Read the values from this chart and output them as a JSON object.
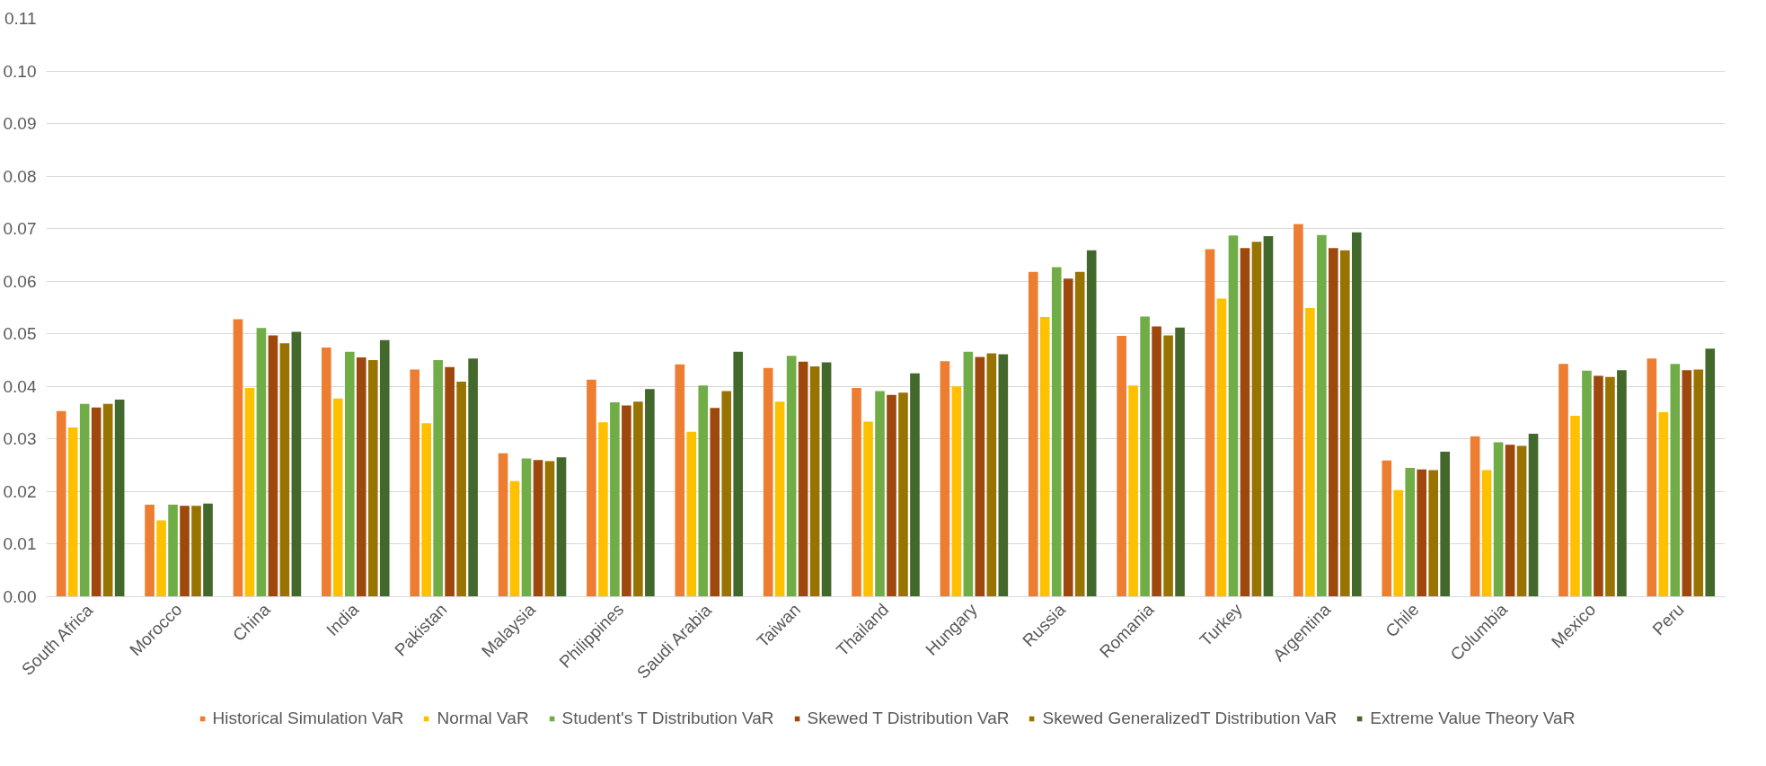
{
  "chart_data": {
    "type": "bar",
    "categories": [
      "South Africa",
      "Morocco",
      "China",
      "India",
      "Pakistan",
      "Malaysia",
      "Philippines",
      "Saudi Arabia",
      "Taiwan",
      "Thailand",
      "Hungary",
      "Russia",
      "Romania",
      "Turkey",
      "Argentina",
      "Chile",
      "Columbia",
      "Mexico",
      "Peru"
    ],
    "series": [
      {
        "name": "Historical Simulation VaR",
        "color": "#ed7d31",
        "values": [
          0.0353,
          0.0175,
          0.0528,
          0.0474,
          0.0432,
          0.0273,
          0.0413,
          0.0442,
          0.0435,
          0.0397,
          0.0448,
          0.0618,
          0.0496,
          0.0661,
          0.0709,
          0.0259,
          0.0305,
          0.0443,
          0.0453
        ]
      },
      {
        "name": "Normal VaR",
        "color": "#ffc000",
        "values": [
          0.0322,
          0.0145,
          0.0397,
          0.0377,
          0.033,
          0.022,
          0.0332,
          0.0314,
          0.0371,
          0.0333,
          0.04,
          0.0532,
          0.0402,
          0.0567,
          0.0549,
          0.0203,
          0.0241,
          0.0344,
          0.0351
        ]
      },
      {
        "name": "Student's T Distribution VaR",
        "color": "#70ad47",
        "values": [
          0.0367,
          0.0175,
          0.0511,
          0.0466,
          0.045,
          0.0263,
          0.037,
          0.0402,
          0.0458,
          0.0391,
          0.0466,
          0.0627,
          0.0533,
          0.0687,
          0.0688,
          0.0245,
          0.0294,
          0.043,
          0.0443
        ]
      },
      {
        "name": "Skewed T Distribution VaR",
        "color": "#9e480e",
        "values": [
          0.036,
          0.0173,
          0.0497,
          0.0455,
          0.0437,
          0.026,
          0.0364,
          0.0359,
          0.0447,
          0.0384,
          0.0456,
          0.0605,
          0.0514,
          0.0663,
          0.0663,
          0.0242,
          0.0289,
          0.042,
          0.0431
        ]
      },
      {
        "name": "Skewed GeneralizedT Distribution VaR",
        "color": "#997300",
        "values": [
          0.0367,
          0.0173,
          0.0482,
          0.045,
          0.0409,
          0.0258,
          0.0371,
          0.0391,
          0.0438,
          0.0388,
          0.0463,
          0.0618,
          0.0497,
          0.0675,
          0.0659,
          0.0241,
          0.0287,
          0.0418,
          0.0432
        ]
      },
      {
        "name": "Extreme Value Theory VaR",
        "color": "#43682b",
        "values": [
          0.0375,
          0.0177,
          0.0504,
          0.0488,
          0.0453,
          0.0265,
          0.0395,
          0.0466,
          0.0446,
          0.0425,
          0.0461,
          0.0659,
          0.0512,
          0.0686,
          0.0693,
          0.0276,
          0.031,
          0.0431,
          0.0472
        ]
      }
    ],
    "ylim": [
      0,
      0.11
    ],
    "yticks": [
      {
        "value": 0,
        "label": "0.00"
      },
      {
        "value": 0.01,
        "label": "0.01"
      },
      {
        "value": 0.02,
        "label": "0.02"
      },
      {
        "value": 0.03,
        "label": "0.03"
      },
      {
        "value": 0.04,
        "label": "0.04"
      },
      {
        "value": 0.05,
        "label": "0.05"
      },
      {
        "value": 0.06,
        "label": "0.06"
      },
      {
        "value": 0.07,
        "label": "0.07"
      },
      {
        "value": 0.08,
        "label": "0.08"
      },
      {
        "value": 0.09,
        "label": "0.09"
      },
      {
        "value": 0.1,
        "label": "0.10"
      },
      {
        "value": 0.11,
        "label": "0.11"
      }
    ],
    "grid": "y",
    "legend": "bottom"
  }
}
